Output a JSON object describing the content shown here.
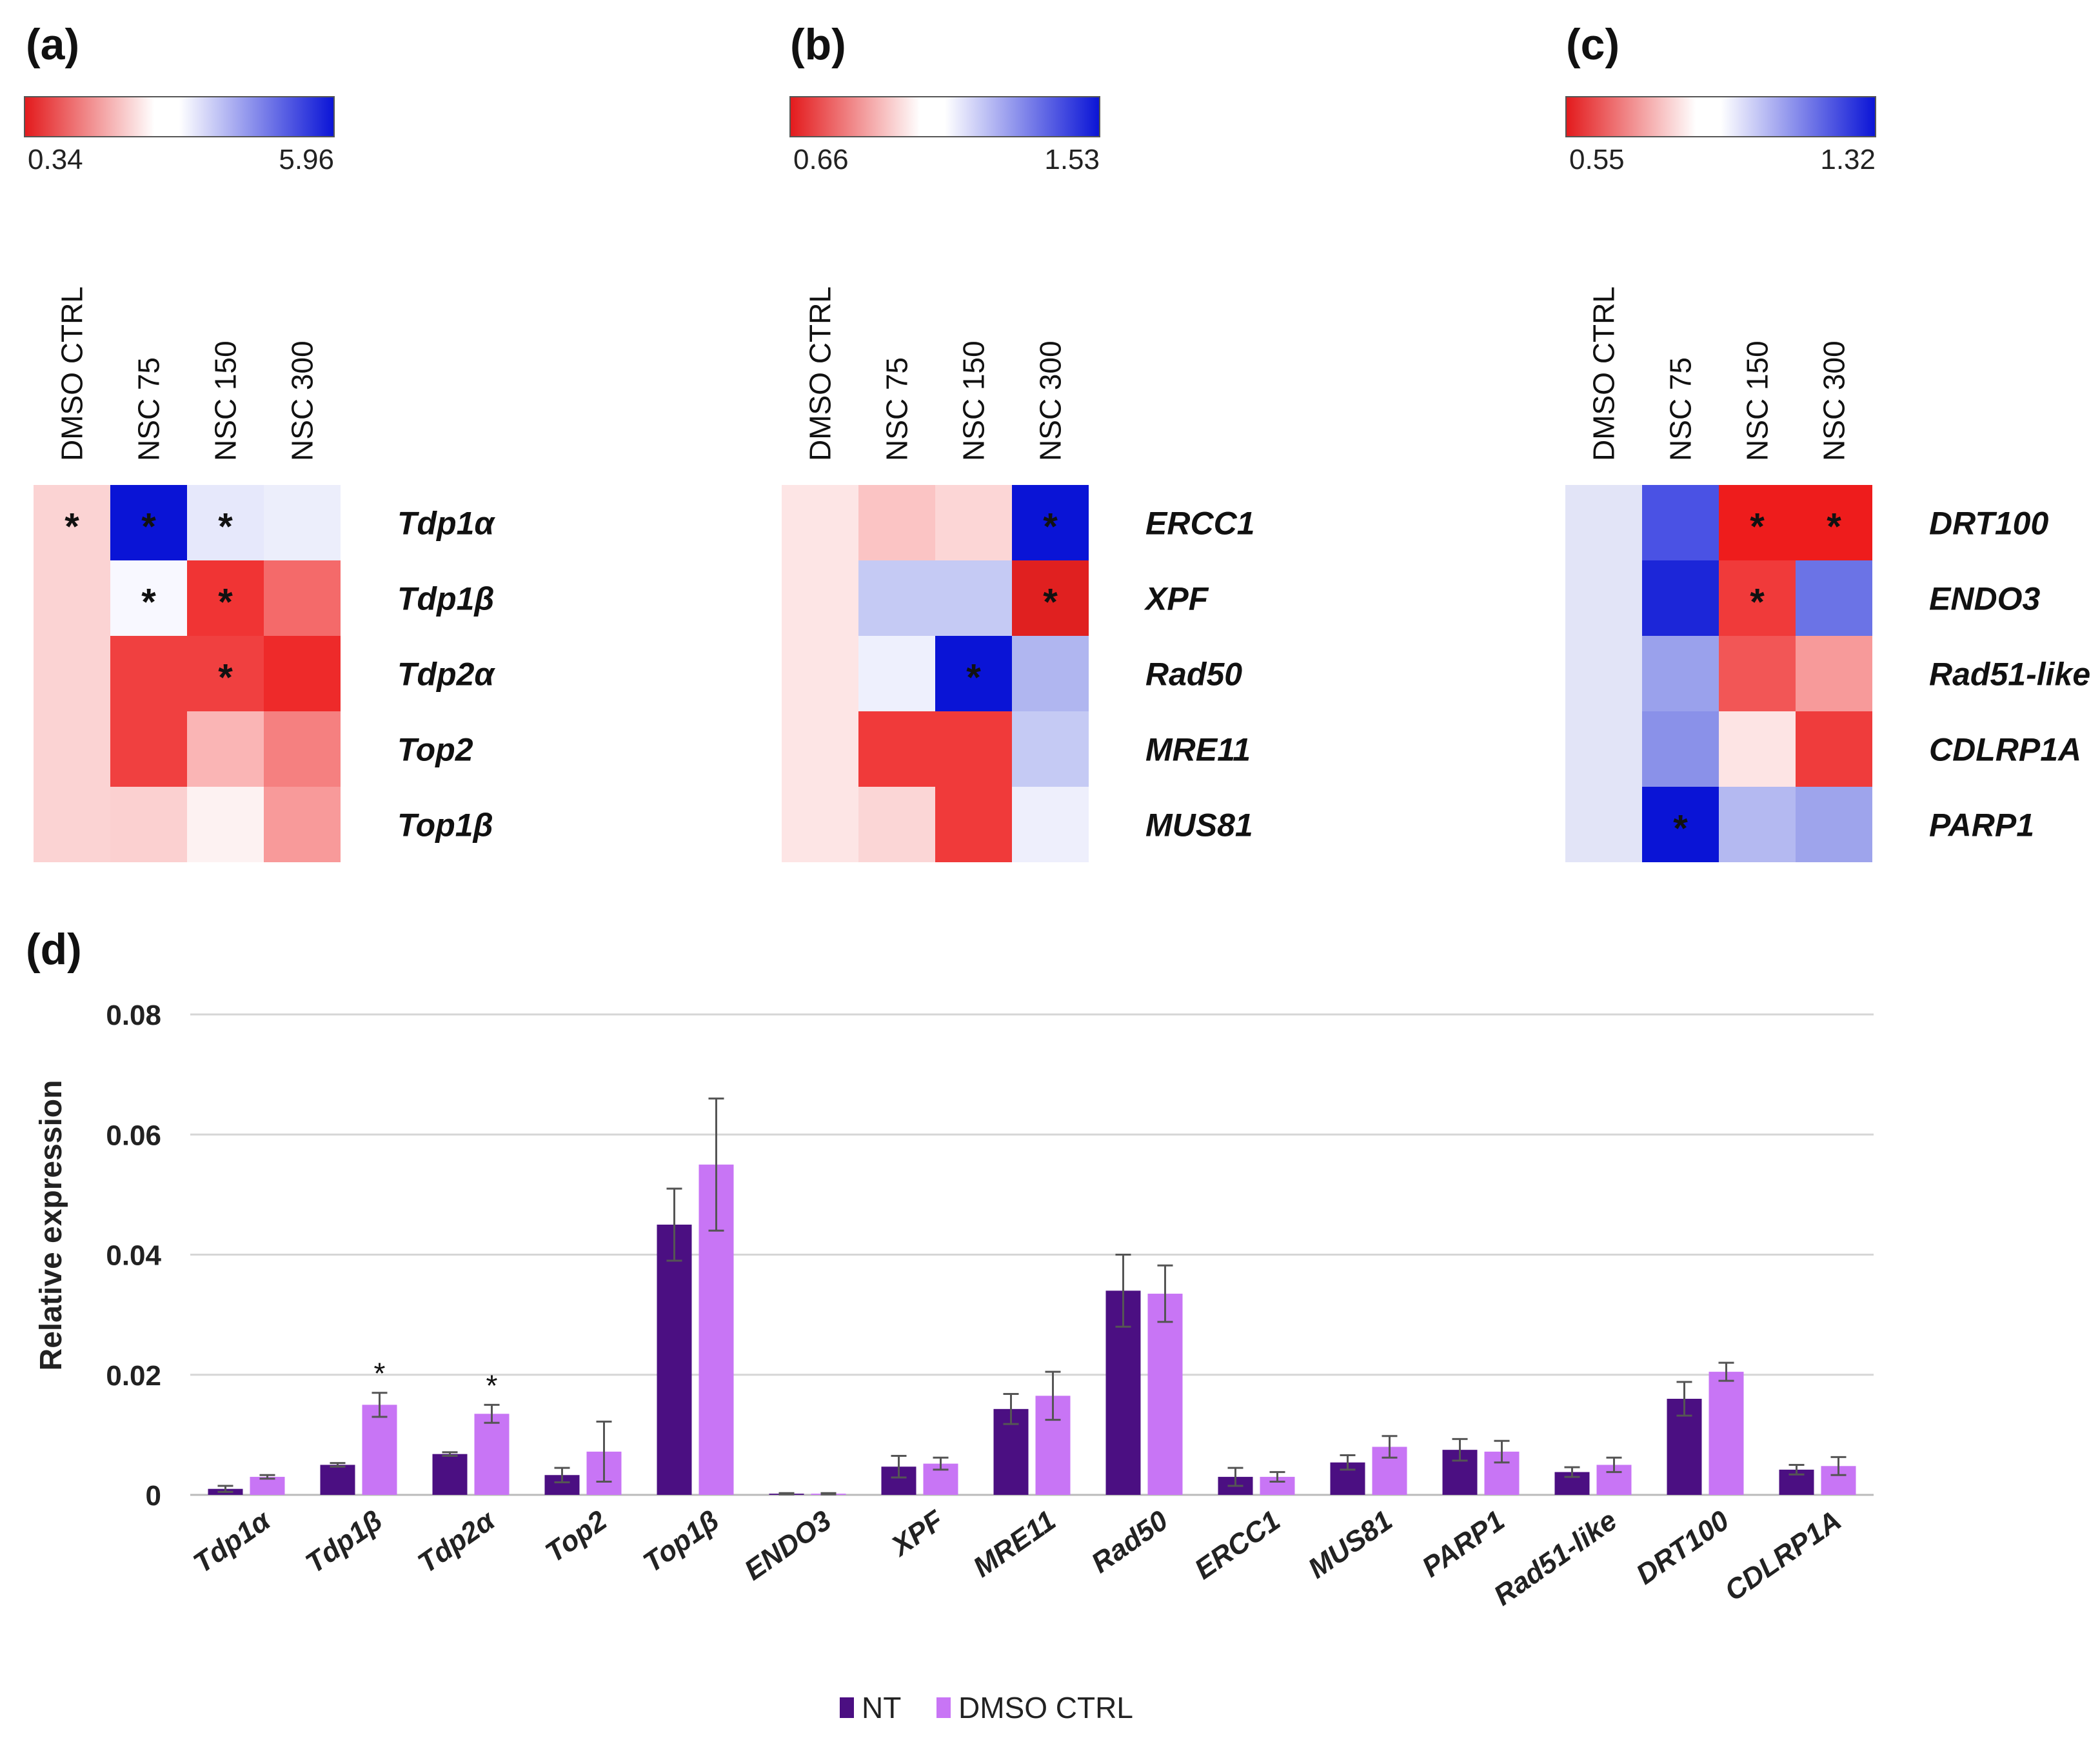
{
  "chart_data": [
    {
      "type": "heatmap",
      "panel": "(a)",
      "colorbar": {
        "min": 0.34,
        "max": 5.96,
        "min_label": "0.34",
        "max_label": "5.96",
        "low_color": "#e31a1c",
        "mid_color": "#ffffff",
        "high_color": "#0a14d6"
      },
      "columns": [
        "DMSO CTRL",
        "NSC 75",
        "NSC 150",
        "NSC 300"
      ],
      "rows": [
        "Tdp1α",
        "Tdp1β",
        "Tdp2α",
        "Top2",
        "Top1β"
      ],
      "cells": [
        [
          "#fbd3d3",
          "#0a14d6",
          "#e6e8fb",
          "#eceefb"
        ],
        [
          "#fbd3d3",
          "#f8f8ff",
          "#f03434",
          "#f46a6a"
        ],
        [
          "#fbd3d3",
          "#f04040",
          "#f04040",
          "#ee2a2a"
        ],
        [
          "#fbd3d3",
          "#f04040",
          "#fab5b5",
          "#f58080"
        ],
        [
          "#fbd3d3",
          "#fbd0d0",
          "#fdf2f2",
          "#f89a9a"
        ]
      ],
      "significant": [
        [
          1,
          1
        ],
        [
          1,
          2
        ],
        [
          1,
          3
        ],
        [
          2,
          2
        ],
        [
          2,
          3
        ],
        [
          3,
          3
        ]
      ]
    },
    {
      "type": "heatmap",
      "panel": "(b)",
      "colorbar": {
        "min": 0.66,
        "max": 1.53,
        "min_label": "0.66",
        "max_label": "1.53",
        "low_color": "#e31a1c",
        "mid_color": "#ffffff",
        "high_color": "#0a14d6"
      },
      "columns": [
        "DMSO CTRL",
        "NSC 75",
        "NSC 150",
        "NSC 300"
      ],
      "rows": [
        "ERCC1",
        "XPF",
        "Rad50",
        "MRE11",
        "MUS81"
      ],
      "cells": [
        [
          "#fde5e5",
          "#fbc4c4",
          "#fcd6d6",
          "#0a14d6"
        ],
        [
          "#fde5e5",
          "#c5caf4",
          "#c5caf4",
          "#e02020"
        ],
        [
          "#fde5e5",
          "#eef0fd",
          "#0a14d6",
          "#b0b6f0"
        ],
        [
          "#fde5e5",
          "#f03a3a",
          "#f03a3a",
          "#c5caf4"
        ],
        [
          "#fde5e5",
          "#fbd6d6",
          "#f03a3a",
          "#eeeffc"
        ]
      ],
      "significant": [
        [
          1,
          4
        ],
        [
          2,
          4
        ],
        [
          3,
          3
        ]
      ]
    },
    {
      "type": "heatmap",
      "panel": "(c)",
      "colorbar": {
        "min": 0.55,
        "max": 1.32,
        "min_label": "0.55",
        "max_label": "1.32",
        "low_color": "#e31a1c",
        "mid_color": "#ffffff",
        "high_color": "#0a14d6"
      },
      "columns": [
        "DMSO CTRL",
        "NSC 75",
        "NSC 150",
        "NSC 300"
      ],
      "rows": [
        "DRT100",
        "ENDO3",
        "Rad51-like",
        "CDLRP1A",
        "PARP1"
      ],
      "cells": [
        [
          "#e2e4f7",
          "#4a52e4",
          "#ee1c1c",
          "#ee1c1c"
        ],
        [
          "#e2e4f7",
          "#1c26d8",
          "#f03a3a",
          "#6b73e6"
        ],
        [
          "#e2e4f7",
          "#9aa1ec",
          "#f25656",
          "#f79a9a"
        ],
        [
          "#e2e4f7",
          "#8a91e9",
          "#fde4e4",
          "#ef3c3c"
        ],
        [
          "#e2e4f7",
          "#0a14d6",
          "#b4b9f1",
          "#9ea4ec"
        ]
      ],
      "significant": [
        [
          1,
          3
        ],
        [
          1,
          4
        ],
        [
          2,
          3
        ],
        [
          5,
          2
        ]
      ]
    },
    {
      "type": "bar",
      "panel": "(d)",
      "categories": [
        "Tdp1α",
        "Tdp1β",
        "Tdp2α",
        "Top2",
        "Top1β",
        "ENDO3",
        "XPF",
        "MRE11",
        "Rad50",
        "ERCC1",
        "MUS81",
        "PARP1",
        "Rad51-like",
        "DRT100",
        "CDLRP1A"
      ],
      "series": [
        {
          "name": "NT",
          "color": "#4b0f82",
          "values": [
            0.001,
            0.005,
            0.0068,
            0.0033,
            0.045,
            0.0002,
            0.0047,
            0.0143,
            0.034,
            0.003,
            0.0054,
            0.0075,
            0.0038,
            0.016,
            0.0042
          ],
          "errors": [
            0.0005,
            0.0003,
            0.0003,
            0.0012,
            0.006,
            0.0001,
            0.0018,
            0.0025,
            0.006,
            0.0015,
            0.0012,
            0.0018,
            0.0008,
            0.0028,
            0.0008
          ]
        },
        {
          "name": "DMSO CTRL",
          "color": "#c875f5",
          "values": [
            0.003,
            0.015,
            0.0135,
            0.0072,
            0.055,
            0.0002,
            0.0052,
            0.0165,
            0.0335,
            0.003,
            0.008,
            0.0072,
            0.005,
            0.0205,
            0.0048
          ],
          "errors": [
            0.0003,
            0.002,
            0.0015,
            0.005,
            0.011,
            0.0001,
            0.001,
            0.004,
            0.0047,
            0.0008,
            0.0018,
            0.0018,
            0.0012,
            0.0015,
            0.0015
          ]
        }
      ],
      "significant_dmso": [
        "Tdp1β",
        "Tdp2α"
      ],
      "ylabel": "Relative expression",
      "xlabel": "",
      "ylim": [
        0,
        0.08
      ],
      "yticks": [
        0,
        0.02,
        0.04,
        0.06,
        0.08
      ],
      "ytick_labels": [
        "0",
        "0.02",
        "0.04",
        "0.06",
        "0.08"
      ],
      "grid": true,
      "legend": "bottom-center"
    }
  ],
  "panel_labels": {
    "a": "(a)",
    "b": "(b)",
    "c": "(c)",
    "d": "(d)"
  },
  "star_symbol": "*"
}
